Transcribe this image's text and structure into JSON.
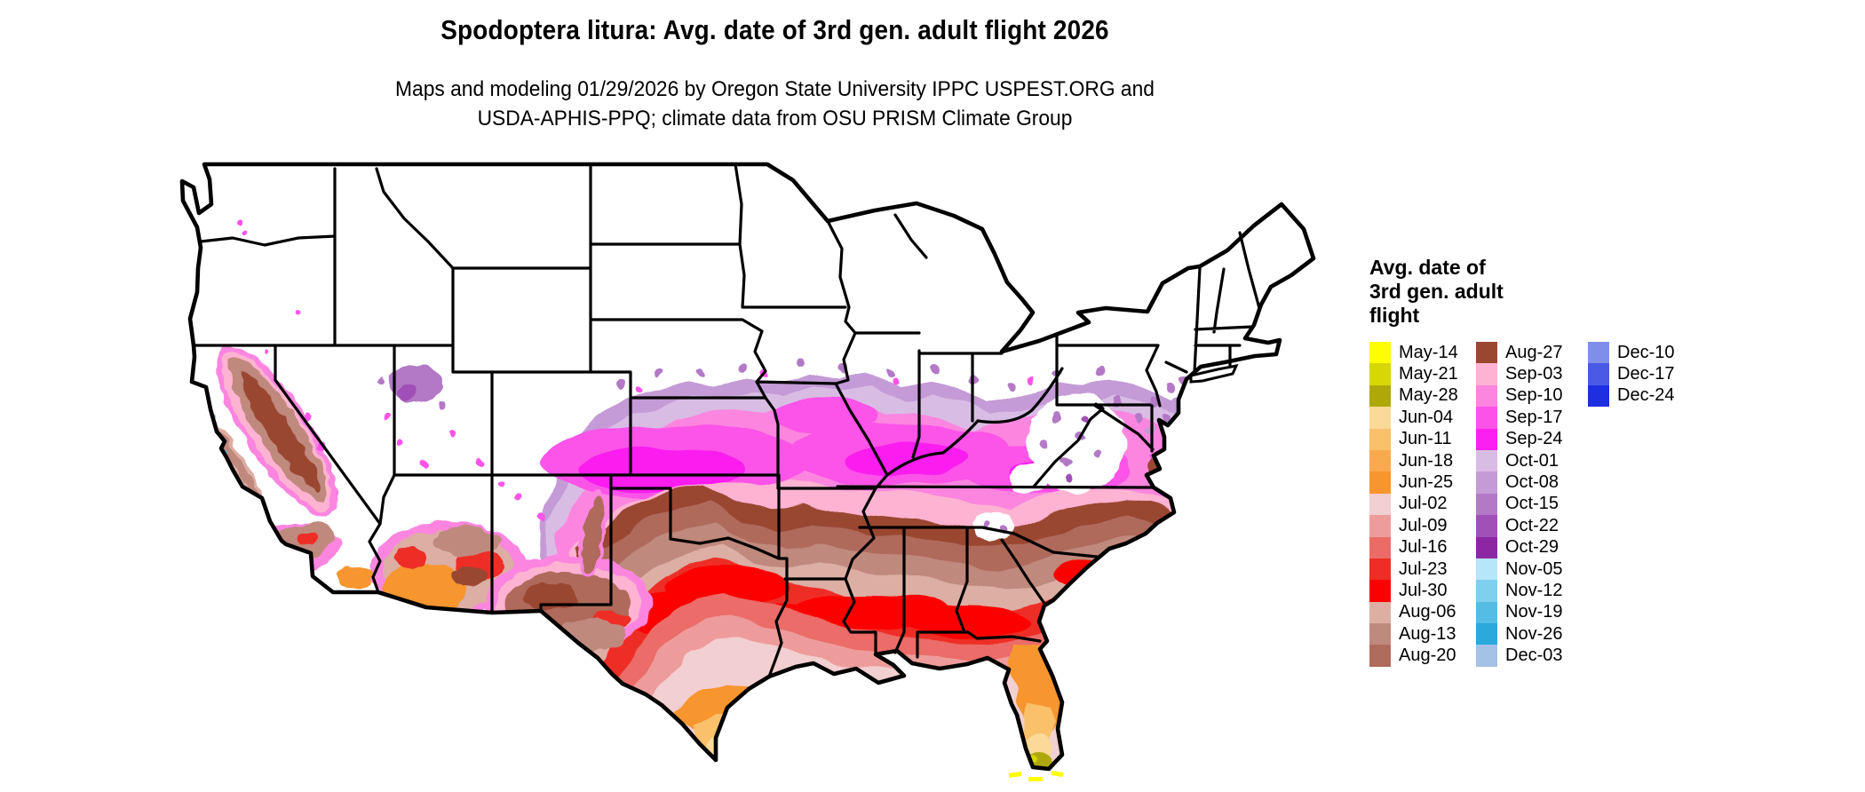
{
  "title": "Spodoptera litura: Avg. date of 3rd gen. adult flight 2026",
  "subtitle_line1": "Maps and modeling 01/29/2026 by Oregon State University IPPC USPEST.ORG and",
  "subtitle_line2": "USDA-APHIS-PPQ; climate data from OSU PRISM Climate Group",
  "legend": {
    "title_lines": [
      "Avg. date of",
      "3rd gen. adult",
      "flight"
    ],
    "columns": [
      {
        "entries": [
          {
            "label": "May-14",
            "color": "#FEFE00"
          },
          {
            "label": "May-21",
            "color": "#D6D703"
          },
          {
            "label": "May-28",
            "color": "#AFA80A"
          },
          {
            "label": "Jun-04",
            "color": "#FBD998"
          },
          {
            "label": "Jun-11",
            "color": "#FAC06A"
          },
          {
            "label": "Jun-18",
            "color": "#F9A94F"
          },
          {
            "label": "Jun-25",
            "color": "#F7952F"
          },
          {
            "label": "Jul-02",
            "color": "#F2CFD0"
          },
          {
            "label": "Jul-09",
            "color": "#EE9C9B"
          },
          {
            "label": "Jul-16",
            "color": "#EB6C67"
          },
          {
            "label": "Jul-23",
            "color": "#EE2E26"
          },
          {
            "label": "Jul-30",
            "color": "#FC0000"
          },
          {
            "label": "Aug-06",
            "color": "#DCAEA4"
          },
          {
            "label": "Aug-13",
            "color": "#C0897D"
          },
          {
            "label": "Aug-20",
            "color": "#AF6B5C"
          }
        ]
      },
      {
        "entries": [
          {
            "label": "Aug-27",
            "color": "#9A4732"
          },
          {
            "label": "Sep-03",
            "color": "#FFB3D2"
          },
          {
            "label": "Sep-10",
            "color": "#FC85E0"
          },
          {
            "label": "Sep-17",
            "color": "#FC52E8"
          },
          {
            "label": "Sep-24",
            "color": "#FB1FF0"
          },
          {
            "label": "Oct-01",
            "color": "#D9BCE4"
          },
          {
            "label": "Oct-08",
            "color": "#C49BD6"
          },
          {
            "label": "Oct-15",
            "color": "#B379C6"
          },
          {
            "label": "Oct-22",
            "color": "#A050B6"
          },
          {
            "label": "Oct-29",
            "color": "#8C27A4"
          },
          {
            "label": "Nov-05",
            "color": "#B5E6FA"
          },
          {
            "label": "Nov-12",
            "color": "#7FD0EE"
          },
          {
            "label": "Nov-19",
            "color": "#55BCE4"
          },
          {
            "label": "Nov-26",
            "color": "#2BA8DC"
          },
          {
            "label": "Dec-03",
            "color": "#A3C2E6"
          }
        ]
      },
      {
        "entries": [
          {
            "label": "Dec-10",
            "color": "#7E8EE9"
          },
          {
            "label": "Dec-17",
            "color": "#4A5AE6"
          },
          {
            "label": "Dec-24",
            "color": "#1E2EE0"
          }
        ]
      }
    ]
  },
  "map": {
    "region": "Contiguous United States",
    "no_data_color": "#FFFFFF",
    "border_color": "#000000"
  }
}
